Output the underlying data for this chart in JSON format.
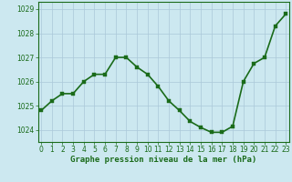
{
  "x": [
    0,
    1,
    2,
    3,
    4,
    5,
    6,
    7,
    8,
    9,
    10,
    11,
    12,
    13,
    14,
    15,
    16,
    17,
    18,
    19,
    20,
    21,
    22,
    23
  ],
  "y": [
    1024.8,
    1025.2,
    1025.5,
    1025.5,
    1026.0,
    1026.3,
    1026.3,
    1027.0,
    1027.0,
    1026.6,
    1026.3,
    1025.8,
    1025.2,
    1024.8,
    1024.35,
    1024.1,
    1023.9,
    1023.9,
    1024.15,
    1026.0,
    1026.75,
    1027.0,
    1028.3,
    1028.8
  ],
  "line_color": "#1a6b1a",
  "marker_color": "#1a6b1a",
  "bg_color": "#cce8f0",
  "grid_color": "#aac8d8",
  "axis_color": "#1a6b1a",
  "xlabel": "Graphe pression niveau de la mer (hPa)",
  "xlabel_color": "#1a6b1a",
  "yticks": [
    1024,
    1025,
    1026,
    1027,
    1028,
    1029
  ],
  "xtick_labels": [
    "0",
    "1",
    "2",
    "3",
    "4",
    "5",
    "6",
    "7",
    "8",
    "9",
    "10",
    "11",
    "12",
    "13",
    "14",
    "15",
    "16",
    "17",
    "18",
    "19",
    "20",
    "21",
    "22",
    "23"
  ],
  "ylim": [
    1023.5,
    1029.3
  ],
  "xlim": [
    -0.3,
    23.3
  ],
  "marker_size": 2.5,
  "line_width": 1.2,
  "tick_fontsize": 5.5,
  "xlabel_fontsize": 6.5
}
